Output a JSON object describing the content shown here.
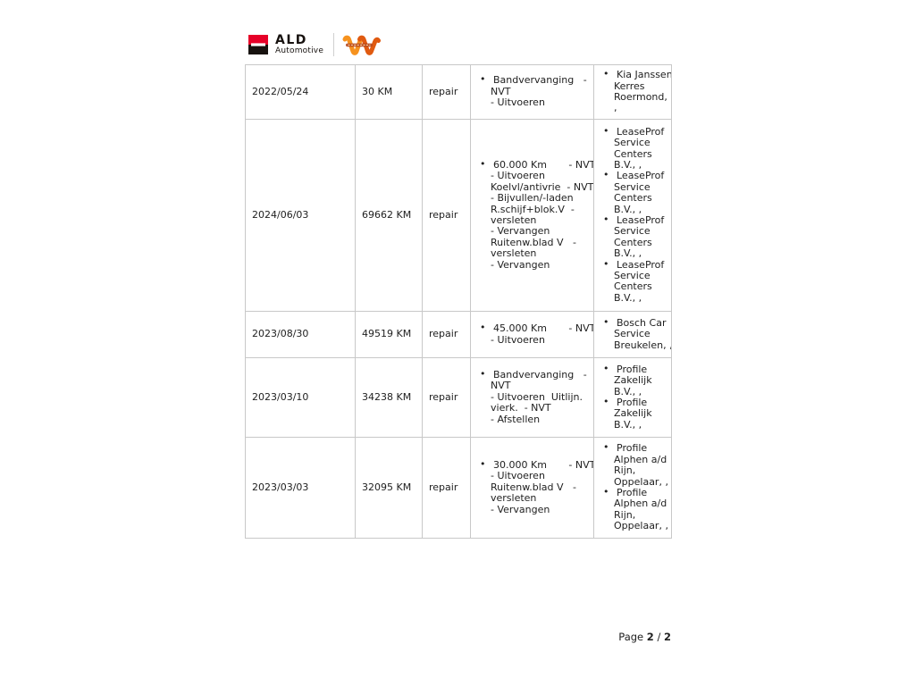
{
  "header": {
    "ald_logo": {
      "title": "ALD",
      "subtitle": "Automotive"
    },
    "colors": {
      "ald_red": "#e60028",
      "ald_black": "#17120f",
      "partner_orange": "#f6921e",
      "partner_dark_orange": "#e05a10",
      "partner_band": "#b5451b"
    }
  },
  "maintenance_table": {
    "rows": [
      {
        "date": "2022/05/24",
        "mileage": "30 KM",
        "type": "repair",
        "work_items": [
          {
            "lines": [
              "Bandvervanging   -",
              "NVT",
              "- Uitvoeren"
            ]
          }
        ],
        "suppliers": [
          {
            "lines": [
              "Kia Janssen",
              "Kerres",
              "Roermond,",
              ","
            ]
          }
        ]
      },
      {
        "date": "2024/06/03",
        "mileage": "69662 KM",
        "type": "repair",
        "work_items": [
          {
            "lines": [
              "60.000 Km       - NVT",
              "- Uitvoeren",
              "Koelvl/antivrie  - NVT",
              "- Bijvullen/-laden",
              "R.schijf+blok.V  -",
              "versleten",
              "- Vervangen",
              "Ruitenw.blad V   -",
              "versleten",
              "- Vervangen"
            ]
          }
        ],
        "suppliers": [
          {
            "lines": [
              "LeaseProf",
              "Service",
              "Centers",
              "B.V., ,"
            ]
          },
          {
            "lines": [
              "LeaseProf",
              "Service",
              "Centers",
              "B.V., ,"
            ]
          },
          {
            "lines": [
              "LeaseProf",
              "Service",
              "Centers",
              "B.V., ,"
            ]
          },
          {
            "lines": [
              "LeaseProf",
              "Service",
              "Centers",
              "B.V., ,"
            ]
          }
        ]
      },
      {
        "date": "2023/08/30",
        "mileage": "49519 KM",
        "type": "repair",
        "work_items": [
          {
            "lines": [
              "45.000 Km       - NVT",
              "- Uitvoeren"
            ]
          }
        ],
        "suppliers": [
          {
            "lines": [
              "Bosch Car",
              "Service",
              "Breukelen, ,"
            ]
          }
        ]
      },
      {
        "date": "2023/03/10",
        "mileage": "34238 KM",
        "type": "repair",
        "work_items": [
          {
            "lines": [
              "Bandvervanging   -",
              "NVT",
              "- Uitvoeren  Uitlijn.",
              "vierk.  - NVT",
              "- Afstellen"
            ]
          }
        ],
        "suppliers": [
          {
            "lines": [
              "Profile",
              "Zakelijk",
              "B.V., ,"
            ]
          },
          {
            "lines": [
              "Profile",
              "Zakelijk",
              "B.V., ,"
            ]
          }
        ]
      },
      {
        "date": "2023/03/03",
        "mileage": "32095 KM",
        "type": "repair",
        "work_items": [
          {
            "lines": [
              "30.000 Km       - NVT",
              "- Uitvoeren",
              "Ruitenw.blad V   -",
              "versleten",
              "- Vervangen"
            ]
          }
        ],
        "suppliers": [
          {
            "lines": [
              "Profile",
              "Alphen a/d",
              "Rijn,",
              "Oppelaar, ,"
            ]
          },
          {
            "lines": [
              "Profile",
              "Alphen a/d",
              "Rijn,",
              "Oppelaar, ,"
            ]
          }
        ]
      }
    ]
  },
  "footer": {
    "page_label": "Page",
    "page_current": "2",
    "page_separator": "/",
    "page_total": "2"
  }
}
